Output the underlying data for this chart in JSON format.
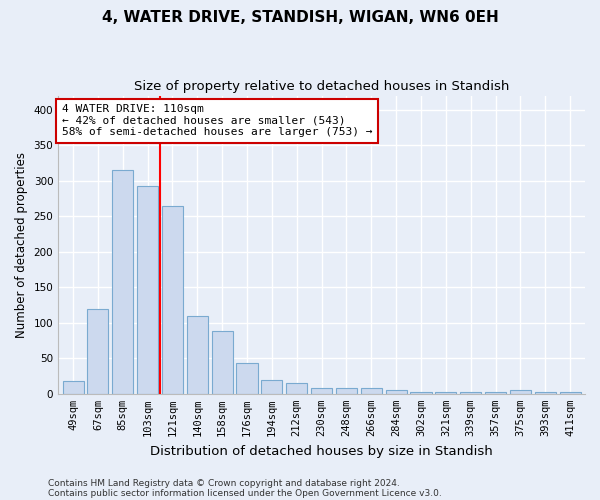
{
  "title": "4, WATER DRIVE, STANDISH, WIGAN, WN6 0EH",
  "subtitle": "Size of property relative to detached houses in Standish",
  "xlabel": "Distribution of detached houses by size in Standish",
  "ylabel": "Number of detached properties",
  "categories": [
    "49sqm",
    "67sqm",
    "85sqm",
    "103sqm",
    "121sqm",
    "140sqm",
    "158sqm",
    "176sqm",
    "194sqm",
    "212sqm",
    "230sqm",
    "248sqm",
    "266sqm",
    "284sqm",
    "302sqm",
    "321sqm",
    "339sqm",
    "357sqm",
    "375sqm",
    "393sqm",
    "411sqm"
  ],
  "values": [
    18,
    120,
    315,
    293,
    265,
    109,
    88,
    44,
    20,
    15,
    8,
    8,
    8,
    5,
    3,
    3,
    3,
    3,
    5,
    3,
    3
  ],
  "bar_color": "#ccd9ee",
  "bar_edge_color": "#7aaad0",
  "bar_linewidth": 0.8,
  "red_line_x": 3.5,
  "annotation_line1": "4 WATER DRIVE: 110sqm",
  "annotation_line2": "← 42% of detached houses are smaller (543)",
  "annotation_line3": "58% of semi-detached houses are larger (753) →",
  "annotation_box_color": "#ffffff",
  "annotation_box_edge": "#cc0000",
  "ylim": [
    0,
    420
  ],
  "yticks": [
    0,
    50,
    100,
    150,
    200,
    250,
    300,
    350,
    400
  ],
  "footer_line1": "Contains HM Land Registry data © Crown copyright and database right 2024.",
  "footer_line2": "Contains public sector information licensed under the Open Government Licence v3.0.",
  "bg_color": "#e8eef8",
  "plot_bg_color": "#e8eef8",
  "grid_color": "#ffffff",
  "title_fontsize": 11,
  "subtitle_fontsize": 9.5,
  "tick_fontsize": 7.5,
  "ylabel_fontsize": 8.5,
  "xlabel_fontsize": 9.5,
  "annotation_fontsize": 8,
  "footer_fontsize": 6.5
}
